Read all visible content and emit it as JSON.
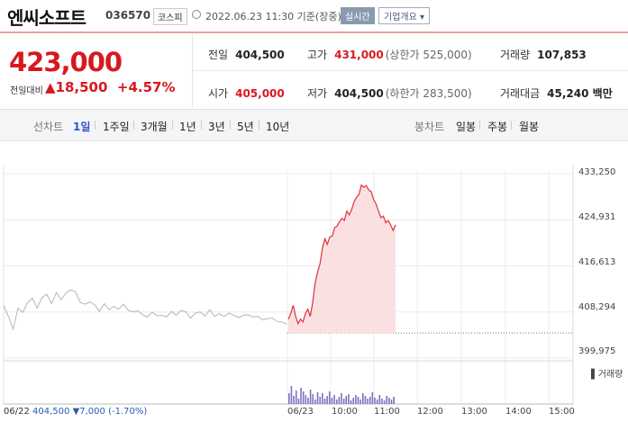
{
  "header": {
    "title": "엔씨소프트",
    "code": "036570",
    "market": "코스피",
    "datetime": "2022.06.23 11:30 기준(장중)",
    "live_label": "실시간",
    "company_button": "기업개요 ▾"
  },
  "quote": {
    "price": "423,000",
    "change_label": "전일대비",
    "change_value": "▲18,500",
    "change_percent": "+4.57%",
    "prev_close_label": "전일",
    "prev_close": "404,500",
    "high_label": "고가",
    "high": "431,000",
    "upper_limit": "(상한가 525,000)",
    "volume_label": "거래량",
    "volume": "107,853",
    "open_label": "시가",
    "open": "405,000",
    "low_label": "저가",
    "low": "404,500",
    "lower_limit": "(하한가 283,500)",
    "amount_label": "거래대금",
    "amount": "45,240 백만"
  },
  "tabs": {
    "line_label": "선차트",
    "line_tabs": [
      "1일",
      "1주일",
      "3개월",
      "1년",
      "3년",
      "5년",
      "10년"
    ],
    "candle_label": "봉차트",
    "candle_tabs": [
      "일봉",
      "주봉",
      "월봉"
    ]
  },
  "chart": {
    "y_ticks": [
      "433,250",
      "424,931",
      "416,613",
      "408,294",
      "399,975"
    ],
    "x_ticks": [
      "06/23",
      "10:00",
      "11:00",
      "12:00",
      "13:00",
      "14:00",
      "15:00"
    ],
    "volume_legend": "▌거래량",
    "prev_day_date": "06/22",
    "prev_day_close": "404,500",
    "prev_day_change": "▼7,000",
    "prev_day_pct": "(-1.70%)"
  },
  "colors": {
    "up": "#d8181f",
    "down": "#2a5db0",
    "volume": "#7f70c0"
  },
  "chart_data": {
    "type": "line",
    "ylim": [
      399975,
      433250
    ],
    "y_ticks": [
      433250,
      424931,
      416613,
      408294,
      399975
    ],
    "x_ticks": [
      "06/23",
      "10:00",
      "11:00",
      "12:00",
      "13:00",
      "14:00",
      "15:00"
    ],
    "series": [
      {
        "values": [
          409500,
          407500,
          405200,
          409000,
          408200,
          410000,
          410800,
          409000,
          410900,
          411500,
          409800,
          411800,
          410500,
          411700,
          412300,
          411900,
          410000,
          409700,
          410100,
          409600,
          408400,
          409800,
          408700,
          409300,
          408800,
          409700,
          408600,
          408300,
          408500,
          407800,
          407400,
          408300,
          407600,
          407700,
          407400,
          408400,
          407700,
          408600,
          408300,
          407200,
          408100,
          408300,
          407600,
          408700,
          407500,
          408000,
          407500,
          408100,
          407700,
          407300,
          407700,
          407800,
          407400,
          407500,
          406900,
          407100,
          407200,
          406600,
          406500,
          406100
        ]
      },
      {
        "values": [
          407000,
          408000,
          409500,
          407500,
          406200,
          407000,
          406500,
          408000,
          408800,
          407500,
          410000,
          413500,
          415500,
          417000,
          419800,
          421500,
          420500,
          421800,
          422000,
          423500,
          423800,
          424600,
          425200,
          424800,
          426500,
          425800,
          426800,
          428200,
          429000,
          429500,
          431200,
          430800,
          431100,
          430300,
          430000,
          428600,
          427800,
          426500,
          425300,
          425600,
          424400,
          424800,
          424000,
          423000,
          424000
        ]
      }
    ],
    "prev_close": 404500
  }
}
